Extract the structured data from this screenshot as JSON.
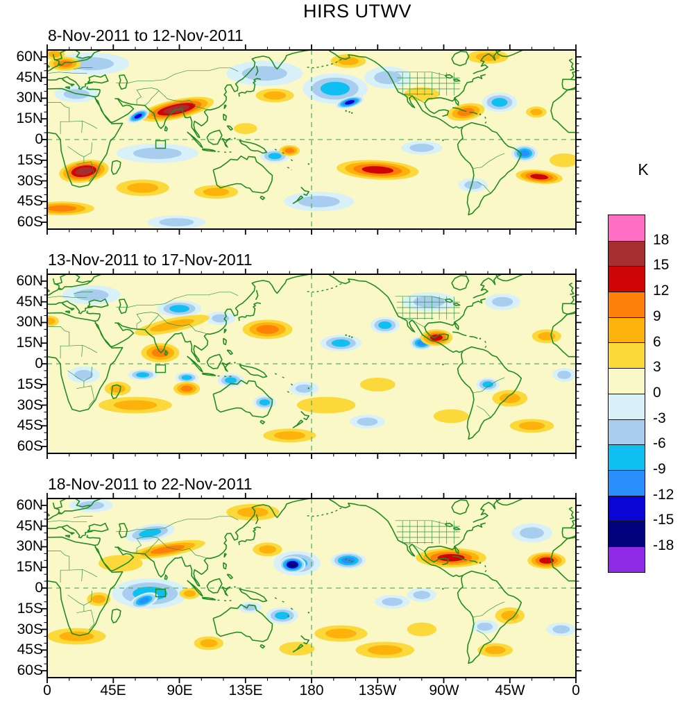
{
  "figure": {
    "title": "HIRS UTWV"
  },
  "panels": [
    {
      "date_range": "8-Nov-2011 to 12-Nov-2011"
    },
    {
      "date_range": "13-Nov-2011 to 17-Nov-2011"
    },
    {
      "date_range": "18-Nov-2011 to 22-Nov-2011"
    }
  ],
  "axes": {
    "lat_tick_labels": [
      "60N",
      "45N",
      "30N",
      "15N",
      "0",
      "15S",
      "30S",
      "45S",
      "60S"
    ],
    "lat_tick_values": [
      60,
      45,
      30,
      15,
      0,
      -15,
      -30,
      -45,
      -60
    ],
    "lon_tick_labels": [
      "0",
      "45E",
      "90E",
      "135E",
      "180",
      "135W",
      "90W",
      "45W",
      "0"
    ],
    "lon_tick_values": [
      0,
      45,
      90,
      135,
      180,
      225,
      270,
      315,
      360
    ]
  },
  "colorbar": {
    "units_label": "K",
    "tick_labels": [
      "18",
      "15",
      "12",
      "9",
      "6",
      "3",
      "0",
      "-3",
      "-6",
      "-9",
      "-12",
      "-15",
      "-18"
    ],
    "cell_colors_top_to_bottom": [
      "#ff6ec2",
      "#a52f2f",
      "#cf0404",
      "#fd8108",
      "#fdb10b",
      "#fcd93b",
      "#fbf8c8",
      "#d8f0f8",
      "#a8cdef",
      "#10bff2",
      "#2b8ffb",
      "#0a04d4",
      "#03027e",
      "#8f2be6"
    ]
  },
  "chart_data": {
    "type": "heatmap",
    "subtype": "filled_contour_anomaly_maps",
    "title": "HIRS UTWV",
    "units": "K",
    "projection": "equirectangular, longitude 0 eastward through 180 to 0 (0 at both edges), latitude 65N to 65S",
    "contour_interval": 3,
    "contour_levels": [
      -18,
      -15,
      -12,
      -9,
      -6,
      -3,
      0,
      3,
      6,
      9,
      12,
      15,
      18
    ],
    "palette": {
      "positive_colors_low_to_high": [
        "#fbf8c8",
        "#fcd93b",
        "#fdb10b",
        "#fd8108",
        "#cf0404",
        "#a52f2f",
        "#ff6ec2"
      ],
      "negative_colors_weak_to_strong": [
        "#d8f0f8",
        "#a8cdef",
        "#10bff2",
        "#2b8ffb",
        "#0a04d4",
        "#03027e",
        "#8f2be6"
      ]
    },
    "map_overlay": {
      "coastline_color": "#1f8c1f",
      "gridlines": "dashed green line at equator and at 180 longitude",
      "study_region_box": "small green box near 74-80E, 1-6S in every panel"
    },
    "anomaly_blobs_format": [
      "lon_deg",
      "lat_deg",
      "radius_lon_deg",
      "radius_lat_deg",
      "rotation_deg",
      "peak_anomaly_K"
    ],
    "panels": [
      {
        "date_range": "8-Nov-2011 to 12-Nov-2011",
        "anomaly_blobs": [
          [
            30,
            55,
            26,
            8,
            0,
            -4
          ],
          [
            148,
            48,
            26,
            9,
            0,
            -4
          ],
          [
            20,
            33,
            15,
            6,
            0,
            -5
          ],
          [
            196,
            37,
            22,
            11,
            0,
            -7
          ],
          [
            206,
            27,
            10,
            4,
            -15,
            -13
          ],
          [
            232,
            45,
            16,
            8,
            0,
            -5
          ],
          [
            75,
            -10,
            28,
            7,
            0,
            -5
          ],
          [
            255,
            -6,
            14,
            5,
            0,
            -4
          ],
          [
            155,
            -12,
            10,
            5,
            0,
            -8
          ],
          [
            185,
            -45,
            24,
            7,
            0,
            -5
          ],
          [
            325,
            -10,
            9,
            6,
            0,
            -9
          ],
          [
            308,
            27,
            12,
            7,
            0,
            -6
          ],
          [
            290,
            -33,
            10,
            5,
            0,
            -5
          ],
          [
            88,
            -60,
            20,
            5,
            0,
            -4
          ],
          [
            5,
            62,
            7,
            4,
            0,
            8
          ],
          [
            12,
            55,
            11,
            5,
            0,
            9
          ],
          [
            10,
            -50,
            22,
            5,
            0,
            9
          ],
          [
            65,
            -35,
            18,
            6,
            0,
            6
          ],
          [
            115,
            -38,
            15,
            5,
            0,
            6
          ],
          [
            135,
            8,
            8,
            4,
            0,
            5
          ],
          [
            165,
            -8,
            7,
            4,
            0,
            10
          ],
          [
            155,
            32,
            13,
            5,
            0,
            6
          ],
          [
            205,
            57,
            12,
            5,
            0,
            6
          ],
          [
            225,
            -22,
            28,
            7,
            3,
            13
          ],
          [
            255,
            33,
            12,
            5,
            0,
            5
          ],
          [
            285,
            20,
            13,
            6,
            -10,
            9
          ],
          [
            333,
            20,
            7,
            4,
            0,
            7
          ],
          [
            335,
            -27,
            16,
            5,
            5,
            12
          ],
          [
            352,
            -15,
            10,
            5,
            0,
            5
          ],
          [
            300,
            60,
            14,
            5,
            0,
            6
          ],
          [
            88,
            22,
            26,
            7,
            -12,
            16
          ],
          [
            62,
            17,
            8,
            4,
            -25,
            -13
          ],
          [
            25,
            -23,
            17,
            8,
            -8,
            16
          ]
        ]
      },
      {
        "date_range": "13-Nov-2011 to 17-Nov-2011",
        "anomaly_blobs": [
          [
            30,
            50,
            20,
            7,
            0,
            -4
          ],
          [
            90,
            40,
            15,
            6,
            0,
            -6
          ],
          [
            118,
            33,
            10,
            5,
            0,
            -5
          ],
          [
            260,
            45,
            18,
            7,
            0,
            -4
          ],
          [
            310,
            45,
            12,
            6,
            0,
            -5
          ],
          [
            25,
            -8,
            11,
            6,
            0,
            -5
          ],
          [
            175,
            -18,
            10,
            5,
            0,
            -5
          ],
          [
            218,
            -42,
            12,
            5,
            0,
            -5
          ],
          [
            300,
            -15,
            8,
            5,
            0,
            -6
          ],
          [
            352,
            -8,
            8,
            5,
            0,
            -5
          ],
          [
            148,
            -28,
            8,
            5,
            0,
            -6
          ],
          [
            230,
            28,
            10,
            6,
            0,
            -6
          ],
          [
            200,
            15,
            14,
            6,
            0,
            -7
          ],
          [
            65,
            -8,
            10,
            4,
            0,
            -8
          ],
          [
            95,
            -10,
            8,
            4,
            0,
            -7
          ],
          [
            125,
            -12,
            9,
            5,
            0,
            -7
          ],
          [
            255,
            15,
            8,
            5,
            0,
            -9
          ],
          [
            2,
            31,
            6,
            4,
            0,
            7
          ],
          [
            60,
            -30,
            25,
            6,
            0,
            6
          ],
          [
            165,
            -52,
            18,
            5,
            0,
            6
          ],
          [
            190,
            -30,
            20,
            6,
            0,
            5
          ],
          [
            225,
            -15,
            12,
            5,
            0,
            5
          ],
          [
            275,
            -38,
            12,
            5,
            0,
            5
          ],
          [
            330,
            -45,
            15,
            5,
            0,
            6
          ],
          [
            340,
            20,
            10,
            5,
            0,
            7
          ],
          [
            315,
            -25,
            12,
            6,
            0,
            8
          ],
          [
            48,
            -18,
            9,
            5,
            0,
            8
          ],
          [
            85,
            28,
            26,
            5,
            -12,
            8
          ],
          [
            150,
            25,
            17,
            7,
            0,
            10
          ],
          [
            95,
            -18,
            9,
            5,
            0,
            10
          ],
          [
            77,
            8,
            13,
            7,
            0,
            11
          ],
          [
            265,
            19,
            11,
            6,
            0,
            13
          ]
        ]
      },
      {
        "date_range": "18-Nov-2011 to 22-Nov-2011",
        "anomaly_blobs": [
          [
            235,
            -10,
            12,
            5,
            0,
            -4
          ],
          [
            330,
            40,
            14,
            7,
            0,
            -5
          ],
          [
            298,
            -28,
            9,
            5,
            0,
            -5
          ],
          [
            255,
            -5,
            10,
            5,
            0,
            -4
          ],
          [
            350,
            -30,
            10,
            5,
            0,
            -5
          ],
          [
            30,
            60,
            15,
            5,
            0,
            -4
          ],
          [
            138,
            -14,
            8,
            4,
            0,
            -5
          ],
          [
            70,
            -4,
            26,
            11,
            0,
            -6
          ],
          [
            160,
            -20,
            11,
            6,
            0,
            -7
          ],
          [
            70,
            40,
            17,
            6,
            -10,
            -8
          ],
          [
            170,
            18,
            16,
            9,
            0,
            -8
          ],
          [
            66,
            -9,
            10,
            5,
            -20,
            -10
          ],
          [
            205,
            20,
            12,
            6,
            0,
            -9
          ],
          [
            167,
            17,
            9,
            6,
            0,
            -17
          ],
          [
            20,
            -35,
            20,
            6,
            0,
            6
          ],
          [
            50,
            18,
            15,
            6,
            0,
            5
          ],
          [
            150,
            28,
            10,
            5,
            0,
            6
          ],
          [
            200,
            -33,
            18,
            6,
            0,
            6
          ],
          [
            230,
            -45,
            20,
            6,
            0,
            6
          ],
          [
            140,
            55,
            18,
            6,
            0,
            6
          ],
          [
            305,
            -45,
            12,
            5,
            0,
            6
          ],
          [
            170,
            -44,
            12,
            5,
            0,
            5
          ],
          [
            255,
            -30,
            10,
            5,
            0,
            5
          ],
          [
            315,
            -20,
            10,
            6,
            0,
            7
          ],
          [
            35,
            -8,
            8,
            5,
            0,
            8
          ],
          [
            97,
            -4,
            7,
            4,
            0,
            8
          ],
          [
            110,
            -40,
            10,
            5,
            0,
            8
          ],
          [
            82,
            28,
            26,
            5,
            -10,
            9
          ],
          [
            275,
            22,
            24,
            7,
            0,
            12
          ],
          [
            340,
            20,
            13,
            6,
            0,
            13
          ]
        ]
      }
    ]
  }
}
